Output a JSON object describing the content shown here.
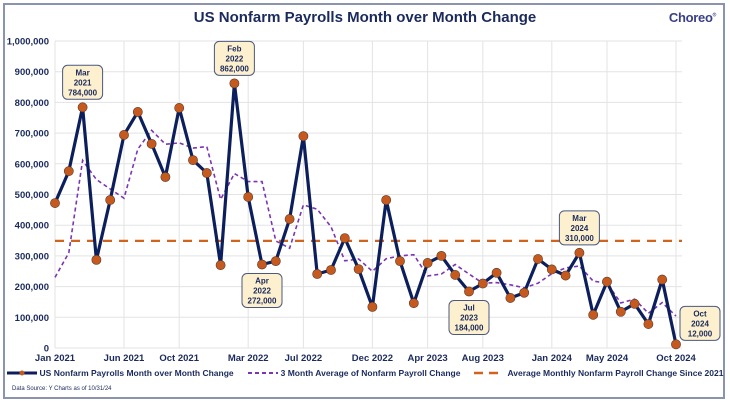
{
  "header": {
    "title": "US Nonfarm Payrolls Month over Month Change",
    "logo_text": "Choreo"
  },
  "footer": {
    "source": "Data Source: Y Charts as of 10/31/24"
  },
  "colors": {
    "payrolls_line": "#0c1f5c",
    "payrolls_marker": "#c65a1e",
    "avg3_line": "#7b35b3",
    "overall_avg_line": "#d0631e",
    "grid": "#e3e3e3"
  },
  "chart_data": {
    "type": "line",
    "title": "US Nonfarm Payrolls Month over Month Change",
    "xlabel": "",
    "ylabel": "",
    "ylim": [
      0,
      1000000
    ],
    "yticks": [
      0,
      100000,
      200000,
      300000,
      400000,
      500000,
      600000,
      700000,
      800000,
      900000,
      1000000
    ],
    "ytick_labels": [
      "0",
      "100,000",
      "200,000",
      "300,000",
      "400,000",
      "500,000",
      "600,000",
      "700,000",
      "800,000",
      "900,000",
      "1,000,000"
    ],
    "grid": true,
    "legend_position": "bottom",
    "x": [
      "Jan 2021",
      "Feb 2021",
      "Mar 2021",
      "Apr 2021",
      "May 2021",
      "Jun 2021",
      "Jul 2021",
      "Aug 2021",
      "Sep 2021",
      "Oct 2021",
      "Nov 2021",
      "Dec 2021",
      "Jan 2022",
      "Feb 2022",
      "Mar 2022",
      "Apr 2022",
      "May 2022",
      "Jun 2022",
      "Jul 2022",
      "Aug 2022",
      "Sep 2022",
      "Oct 2022",
      "Nov 2022",
      "Dec 2022",
      "Jan 2023",
      "Feb 2023",
      "Mar 2023",
      "Apr 2023",
      "May 2023",
      "Jun 2023",
      "Jul 2023",
      "Aug 2023",
      "Sep 2023",
      "Oct 2023",
      "Nov 2023",
      "Dec 2023",
      "Jan 2024",
      "Feb 2024",
      "Mar 2024",
      "Apr 2024",
      "May 2024",
      "Jun 2024",
      "Jul 2024",
      "Aug 2024",
      "Sep 2024",
      "Oct 2024"
    ],
    "xtick_labels": [
      {
        "index": 0,
        "label": "Jan 2021"
      },
      {
        "index": 5,
        "label": "Jun 2021"
      },
      {
        "index": 9,
        "label": "Oct 2021"
      },
      {
        "index": 14,
        "label": "Mar 2022"
      },
      {
        "index": 18,
        "label": "Jul 2022"
      },
      {
        "index": 23,
        "label": "Dec 2022"
      },
      {
        "index": 27,
        "label": "Apr 2023"
      },
      {
        "index": 31,
        "label": "Aug 2023"
      },
      {
        "index": 36,
        "label": "Jan 2024"
      },
      {
        "index": 40,
        "label": "May 2024"
      },
      {
        "index": 45,
        "label": "Oct 2024"
      }
    ],
    "series": [
      {
        "name": "US Nonfarm Payrolls Month over Month Change",
        "style": "line-marker",
        "values": [
          472000,
          576000,
          784000,
          287000,
          482000,
          694000,
          769000,
          665000,
          557000,
          782000,
          612000,
          570000,
          270000,
          862000,
          492000,
          272000,
          283000,
          420000,
          690000,
          241000,
          254000,
          358000,
          257000,
          134000,
          482000,
          283000,
          146000,
          277000,
          300000,
          238000,
          184000,
          210000,
          245000,
          163000,
          180000,
          290000,
          256000,
          236000,
          310000,
          108000,
          216000,
          118000,
          144000,
          78000,
          223000,
          12000
        ]
      },
      {
        "name": "3 Month Average of Nonfarm Payroll Change",
        "style": "dashed",
        "values": [
          230000,
          310000,
          611000,
          549000,
          518000,
          488000,
          648000,
          709000,
          664000,
          668000,
          651000,
          656000,
          484000,
          568000,
          542000,
          542000,
          349000,
          325000,
          466000,
          452000,
          395000,
          284000,
          290000,
          250000,
          291000,
          300000,
          304000,
          235000,
          241000,
          272000,
          241000,
          211000,
          213000,
          206000,
          196000,
          211000,
          242000,
          261000,
          267000,
          218000,
          211000,
          147000,
          159000,
          113000,
          148000,
          104000
        ]
      },
      {
        "name": "Average Monthly Nonfarm Payroll Change Since 2021",
        "style": "long-dash",
        "constant": 349000
      }
    ],
    "annotations": [
      {
        "index": 2,
        "lines": [
          "Mar",
          "2021",
          "784,000"
        ],
        "placement": "above"
      },
      {
        "index": 13,
        "lines": [
          "Feb",
          "2022",
          "862,000"
        ],
        "placement": "above"
      },
      {
        "index": 15,
        "lines": [
          "Apr",
          "2022",
          "272,000"
        ],
        "placement": "below"
      },
      {
        "index": 30,
        "lines": [
          "Jul",
          "2023",
          "184,000"
        ],
        "placement": "below"
      },
      {
        "index": 38,
        "lines": [
          "Mar",
          "2024",
          "310,000"
        ],
        "placement": "above"
      },
      {
        "index": 45,
        "lines": [
          "Oct",
          "2024",
          "12,000"
        ],
        "placement": "right"
      }
    ]
  }
}
